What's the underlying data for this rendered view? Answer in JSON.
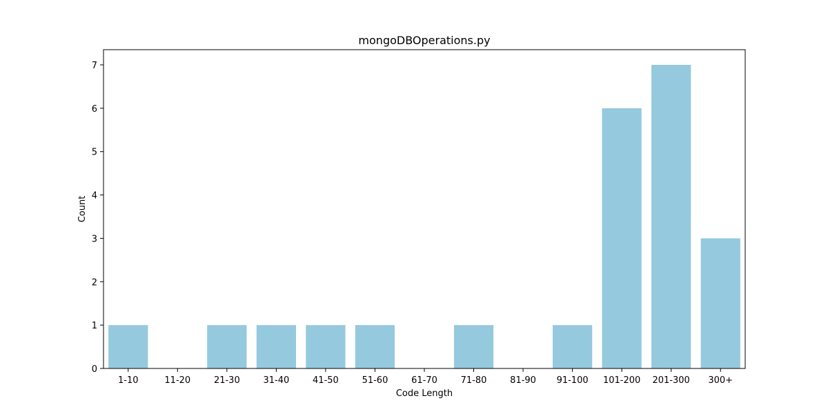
{
  "chart_data": {
    "type": "bar",
    "title": "mongoDBOperations.py",
    "xlabel": "Code Length",
    "ylabel": "Count",
    "categories": [
      "1-10",
      "11-20",
      "21-30",
      "31-40",
      "41-50",
      "51-60",
      "61-70",
      "71-80",
      "81-90",
      "91-100",
      "101-200",
      "201-300",
      "300+"
    ],
    "values": [
      1,
      0,
      1,
      1,
      1,
      1,
      0,
      1,
      0,
      1,
      6,
      7,
      3
    ],
    "ylim": [
      0,
      7.35
    ],
    "yticks": [
      "0",
      "1",
      "2",
      "3",
      "4",
      "5",
      "6",
      "7"
    ],
    "grid": false,
    "bar_color": "#95c9de",
    "axis_color": "#000000"
  }
}
